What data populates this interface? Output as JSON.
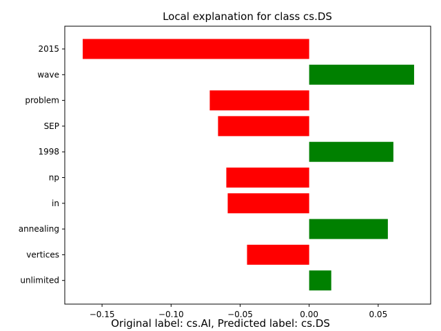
{
  "chart_data": {
    "type": "bar",
    "orientation": "horizontal",
    "title": "Local explanation for class cs.DS",
    "caption": "Original label: cs.AI, Predicted label: cs.DS",
    "categories": [
      "2015",
      "wave",
      "problem",
      "SEP",
      "1998",
      "np",
      "in",
      "annealing",
      "vertices",
      "unlimited"
    ],
    "values": [
      -0.164,
      0.076,
      -0.072,
      -0.066,
      0.061,
      -0.06,
      -0.059,
      0.057,
      -0.045,
      0.016
    ],
    "xlim": [
      -0.177,
      0.088
    ],
    "xticks": [
      -0.15,
      -0.1,
      -0.05,
      0.0,
      0.05
    ],
    "xtick_labels": [
      "−0.15",
      "−0.10",
      "−0.05",
      "0.00",
      "0.05"
    ],
    "colors": {
      "positive": "#008000",
      "negative": "#ff0000"
    },
    "grid": false,
    "legend": "none"
  }
}
